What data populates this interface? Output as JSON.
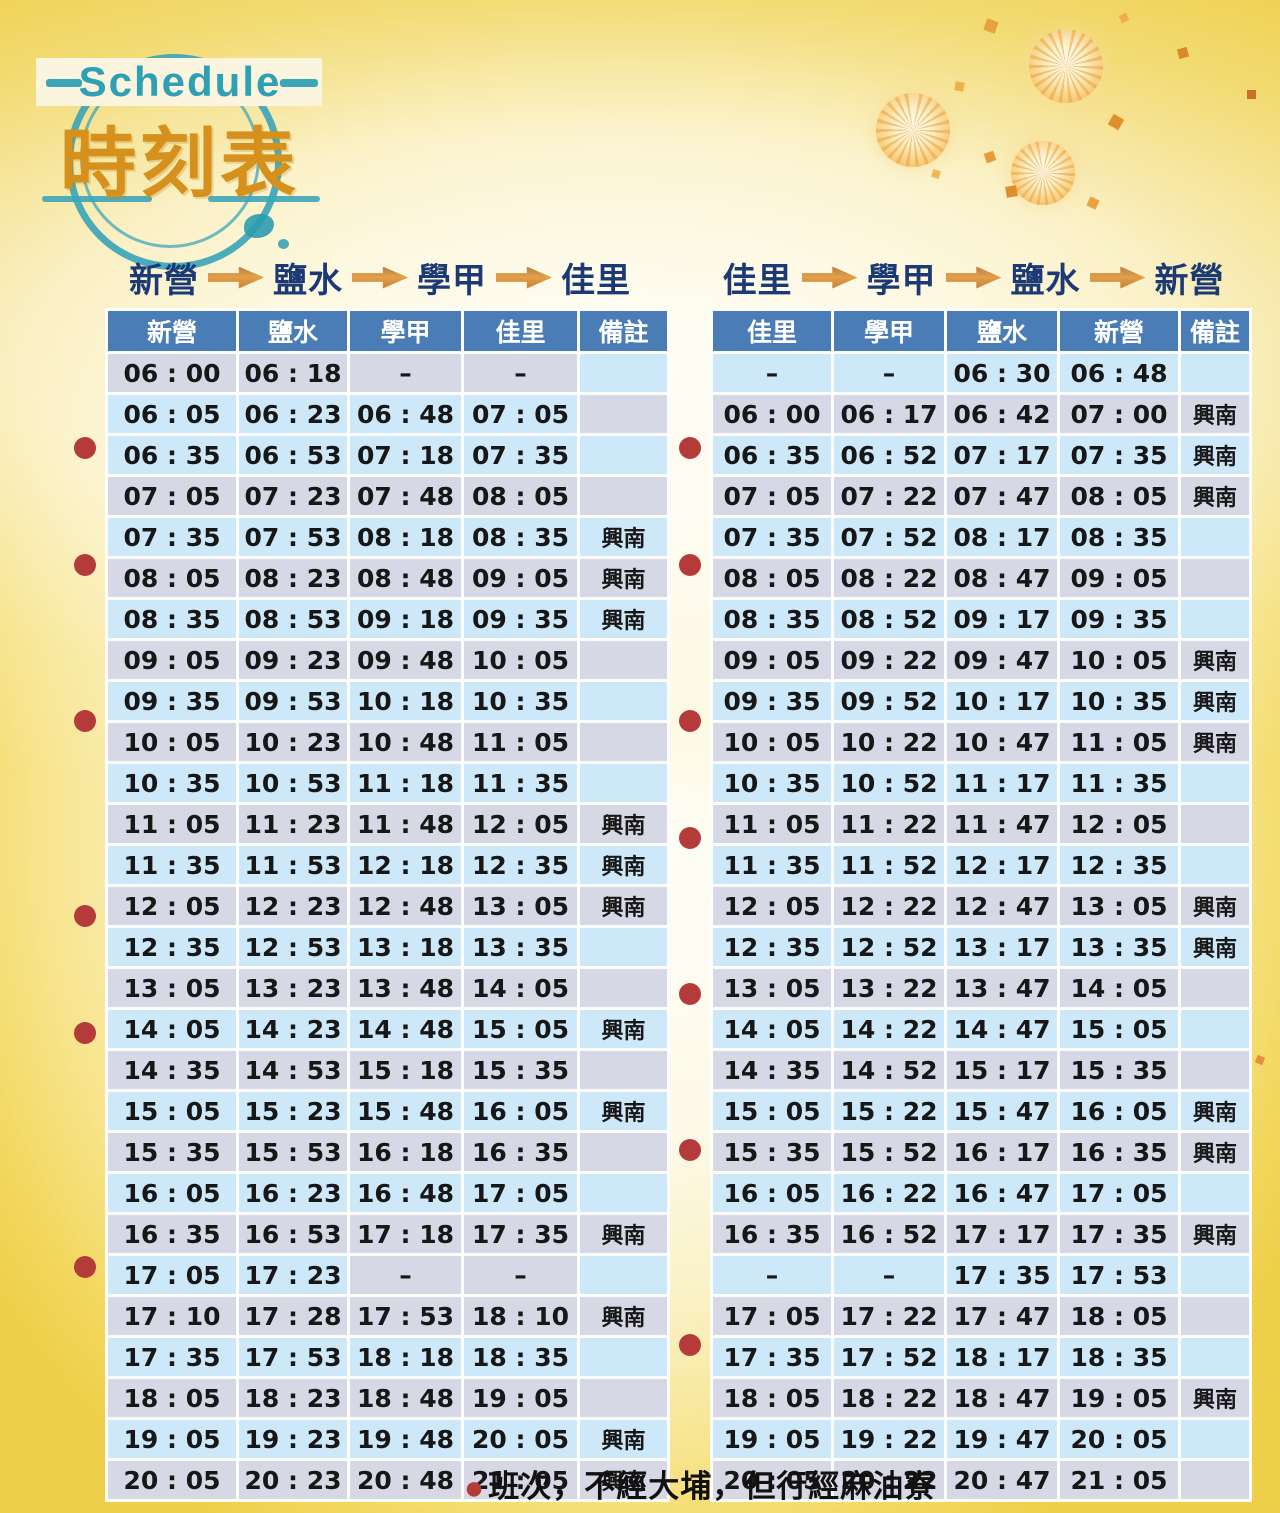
{
  "logo": {
    "stamp_text": "Schedule",
    "title": "時刻表"
  },
  "icons": {
    "route_arrow": "right-arrow",
    "route_dot": "red-circle-bullet"
  },
  "colors": {
    "header_blue": "#4a7db6",
    "row_gray": "#d6d8e5",
    "row_blue": "#cde9f9",
    "dot_red": "#b43b3a",
    "title_navy": "#1b3a75",
    "arrow_orange": "#d4913f",
    "stamp_teal": "#3da5b8",
    "logo_orange": "#d5911c"
  },
  "tables": [
    {
      "id": "outbound",
      "route": [
        "新營",
        "鹽水",
        "學甲",
        "佳里"
      ],
      "columns": [
        "新營",
        "鹽水",
        "學甲",
        "佳里",
        "備註"
      ],
      "rows": [
        {
          "times": [
            "06 : 00",
            "06 : 18",
            "–",
            "–"
          ],
          "note": "",
          "dot": false,
          "shades": "ggggb"
        },
        {
          "times": [
            "06 : 05",
            "06 : 23",
            "06 : 48",
            "07 : 05"
          ],
          "note": "",
          "dot": false,
          "shades": "bbbbg"
        },
        {
          "times": [
            "06 : 35",
            "06 : 53",
            "07 : 18",
            "07 : 35"
          ],
          "note": "",
          "dot": true,
          "shades": "bbbbb"
        },
        {
          "times": [
            "07 : 05",
            "07 : 23",
            "07 : 48",
            "08 : 05"
          ],
          "note": "",
          "dot": false,
          "shades": "ggggg"
        },
        {
          "times": [
            "07 : 35",
            "07 : 53",
            "08 : 18",
            "08 : 35"
          ],
          "note": "興南",
          "dot": false,
          "shades": "bbbbb"
        },
        {
          "times": [
            "08 : 05",
            "08 : 23",
            "08 : 48",
            "09 : 05"
          ],
          "note": "興南",
          "dot": true,
          "shades": "ggggg"
        },
        {
          "times": [
            "08 : 35",
            "08 : 53",
            "09 : 18",
            "09 : 35"
          ],
          "note": "興南",
          "dot": false,
          "shades": "bbbbb"
        },
        {
          "times": [
            "09 : 05",
            "09 : 23",
            "09 : 48",
            "10 : 05"
          ],
          "note": "",
          "dot": false,
          "shades": "ggggg"
        },
        {
          "times": [
            "09 : 35",
            "09 : 53",
            "10 : 18",
            "10 : 35"
          ],
          "note": "",
          "dot": false,
          "shades": "bbbbb"
        },
        {
          "times": [
            "10 : 05",
            "10 : 23",
            "10 : 48",
            "11 : 05"
          ],
          "note": "",
          "dot": true,
          "shades": "ggggg"
        },
        {
          "times": [
            "10 : 35",
            "10 : 53",
            "11 : 18",
            "11 : 35"
          ],
          "note": "",
          "dot": false,
          "shades": "bbbbb"
        },
        {
          "times": [
            "11 : 05",
            "11 : 23",
            "11 : 48",
            "12 : 05"
          ],
          "note": "興南",
          "dot": false,
          "shades": "ggggg"
        },
        {
          "times": [
            "11 : 35",
            "11 : 53",
            "12 : 18",
            "12 : 35"
          ],
          "note": "興南",
          "dot": false,
          "shades": "bbbbb"
        },
        {
          "times": [
            "12 : 05",
            "12 : 23",
            "12 : 48",
            "13 : 05"
          ],
          "note": "興南",
          "dot": false,
          "shades": "ggggg"
        },
        {
          "times": [
            "12 : 35",
            "12 : 53",
            "13 : 18",
            "13 : 35"
          ],
          "note": "",
          "dot": true,
          "shades": "bbbbb"
        },
        {
          "times": [
            "13 : 05",
            "13 : 23",
            "13 : 48",
            "14 : 05"
          ],
          "note": "",
          "dot": false,
          "shades": "ggggg"
        },
        {
          "times": [
            "14 : 05",
            "14 : 23",
            "14 : 48",
            "15 : 05"
          ],
          "note": "興南",
          "dot": false,
          "shades": "bbbbb"
        },
        {
          "times": [
            "14 : 35",
            "14 : 53",
            "15 : 18",
            "15 : 35"
          ],
          "note": "",
          "dot": true,
          "shades": "ggggg"
        },
        {
          "times": [
            "15 : 05",
            "15 : 23",
            "15 : 48",
            "16 : 05"
          ],
          "note": "興南",
          "dot": false,
          "shades": "bbbbb"
        },
        {
          "times": [
            "15 : 35",
            "15 : 53",
            "16 : 18",
            "16 : 35"
          ],
          "note": "",
          "dot": false,
          "shades": "ggggg"
        },
        {
          "times": [
            "16 : 05",
            "16 : 23",
            "16 : 48",
            "17 : 05"
          ],
          "note": "",
          "dot": false,
          "shades": "bbbbb"
        },
        {
          "times": [
            "16 : 35",
            "16 : 53",
            "17 : 18",
            "17 : 35"
          ],
          "note": "興南",
          "dot": false,
          "shades": "ggggg"
        },
        {
          "times": [
            "17 : 05",
            "17 : 23",
            "–",
            "–"
          ],
          "note": "",
          "dot": false,
          "shades": "bbggb"
        },
        {
          "times": [
            "17 : 10",
            "17 : 28",
            "17 : 53",
            "18 : 10"
          ],
          "note": "興南",
          "dot": true,
          "shades": "ggggg"
        },
        {
          "times": [
            "17 : 35",
            "17 : 53",
            "18 : 18",
            "18 : 35"
          ],
          "note": "",
          "dot": false,
          "shades": "bbbbb"
        },
        {
          "times": [
            "18 : 05",
            "18 : 23",
            "18 : 48",
            "19 : 05"
          ],
          "note": "",
          "dot": false,
          "shades": "ggggg"
        },
        {
          "times": [
            "19 : 05",
            "19 : 23",
            "19 : 48",
            "20 : 05"
          ],
          "note": "興南",
          "dot": false,
          "shades": "bbbbb"
        },
        {
          "times": [
            "20 : 05",
            "20 : 23",
            "20 : 48",
            "21 : 05"
          ],
          "note": "興南",
          "dot": false,
          "shades": "ggggg"
        }
      ]
    },
    {
      "id": "return",
      "route": [
        "佳里",
        "學甲",
        "鹽水",
        "新營"
      ],
      "columns": [
        "佳里",
        "學甲",
        "鹽水",
        "新營",
        "備註"
      ],
      "rows": [
        {
          "times": [
            "–",
            "–",
            "06 : 30",
            "06 : 48"
          ],
          "note": "",
          "dot": false,
          "shades": "bbbbb"
        },
        {
          "times": [
            "06 : 00",
            "06 : 17",
            "06 : 42",
            "07 : 00"
          ],
          "note": "興南",
          "dot": false,
          "shades": "ggggg"
        },
        {
          "times": [
            "06 : 35",
            "06 : 52",
            "07 : 17",
            "07 : 35"
          ],
          "note": "興南",
          "dot": true,
          "shades": "bbbbb"
        },
        {
          "times": [
            "07 : 05",
            "07 : 22",
            "07 : 47",
            "08 : 05"
          ],
          "note": "興南",
          "dot": false,
          "shades": "ggggg"
        },
        {
          "times": [
            "07 : 35",
            "07 : 52",
            "08 : 17",
            "08 : 35"
          ],
          "note": "",
          "dot": false,
          "shades": "bbbbb"
        },
        {
          "times": [
            "08 : 05",
            "08 : 22",
            "08 : 47",
            "09 : 05"
          ],
          "note": "",
          "dot": true,
          "shades": "ggggg"
        },
        {
          "times": [
            "08 : 35",
            "08 : 52",
            "09 : 17",
            "09 : 35"
          ],
          "note": "",
          "dot": false,
          "shades": "bbbbb"
        },
        {
          "times": [
            "09 : 05",
            "09 : 22",
            "09 : 47",
            "10 : 05"
          ],
          "note": "興南",
          "dot": false,
          "shades": "ggggg"
        },
        {
          "times": [
            "09 : 35",
            "09 : 52",
            "10 : 17",
            "10 : 35"
          ],
          "note": "興南",
          "dot": false,
          "shades": "bbbbb"
        },
        {
          "times": [
            "10 : 05",
            "10 : 22",
            "10 : 47",
            "11 : 05"
          ],
          "note": "興南",
          "dot": true,
          "shades": "ggggg"
        },
        {
          "times": [
            "10 : 35",
            "10 : 52",
            "11 : 17",
            "11 : 35"
          ],
          "note": "",
          "dot": false,
          "shades": "bbbbb"
        },
        {
          "times": [
            "11 : 05",
            "11 : 22",
            "11 : 47",
            "12 : 05"
          ],
          "note": "",
          "dot": false,
          "shades": "ggggg"
        },
        {
          "times": [
            "11 : 35",
            "11 : 52",
            "12 : 17",
            "12 : 35"
          ],
          "note": "",
          "dot": true,
          "shades": "bbbbb"
        },
        {
          "times": [
            "12 : 05",
            "12 : 22",
            "12 : 47",
            "13 : 05"
          ],
          "note": "興南",
          "dot": false,
          "shades": "ggggg"
        },
        {
          "times": [
            "12 : 35",
            "12 : 52",
            "13 : 17",
            "13 : 35"
          ],
          "note": "興南",
          "dot": false,
          "shades": "bbbbb"
        },
        {
          "times": [
            "13 : 05",
            "13 : 22",
            "13 : 47",
            "14 : 05"
          ],
          "note": "",
          "dot": false,
          "shades": "ggggg"
        },
        {
          "times": [
            "14 : 05",
            "14 : 22",
            "14 : 47",
            "15 : 05"
          ],
          "note": "",
          "dot": true,
          "shades": "bbbbb"
        },
        {
          "times": [
            "14 : 35",
            "14 : 52",
            "15 : 17",
            "15 : 35"
          ],
          "note": "",
          "dot": false,
          "shades": "ggggg"
        },
        {
          "times": [
            "15 : 05",
            "15 : 22",
            "15 : 47",
            "16 : 05"
          ],
          "note": "興南",
          "dot": false,
          "shades": "bbbbb"
        },
        {
          "times": [
            "15 : 35",
            "15 : 52",
            "16 : 17",
            "16 : 35"
          ],
          "note": "興南",
          "dot": false,
          "shades": "ggggg"
        },
        {
          "times": [
            "16 : 05",
            "16 : 22",
            "16 : 47",
            "17 : 05"
          ],
          "note": "",
          "dot": true,
          "shades": "bbbbb"
        },
        {
          "times": [
            "16 : 35",
            "16 : 52",
            "17 : 17",
            "17 : 35"
          ],
          "note": "興南",
          "dot": false,
          "shades": "ggggg"
        },
        {
          "times": [
            "–",
            "–",
            "17 : 35",
            "17 : 53"
          ],
          "note": "",
          "dot": false,
          "shades": "bbbbb"
        },
        {
          "times": [
            "17 : 05",
            "17 : 22",
            "17 : 47",
            "18 : 05"
          ],
          "note": "",
          "dot": false,
          "shades": "ggggg"
        },
        {
          "times": [
            "17 : 35",
            "17 : 52",
            "18 : 17",
            "18 : 35"
          ],
          "note": "",
          "dot": false,
          "shades": "bbbbb"
        },
        {
          "times": [
            "18 : 05",
            "18 : 22",
            "18 : 47",
            "19 : 05"
          ],
          "note": "興南",
          "dot": true,
          "shades": "ggggg"
        },
        {
          "times": [
            "19 : 05",
            "19 : 22",
            "19 : 47",
            "20 : 05"
          ],
          "note": "",
          "dot": false,
          "shades": "bbbbb"
        },
        {
          "times": [
            "20 : 05",
            "20 : 22",
            "20 : 47",
            "21 : 05"
          ],
          "note": "",
          "dot": false,
          "shades": "ggggg"
        }
      ]
    }
  ],
  "footer": {
    "bullet": "●",
    "note": "班次，不經大埔，但行經麻油寮"
  }
}
